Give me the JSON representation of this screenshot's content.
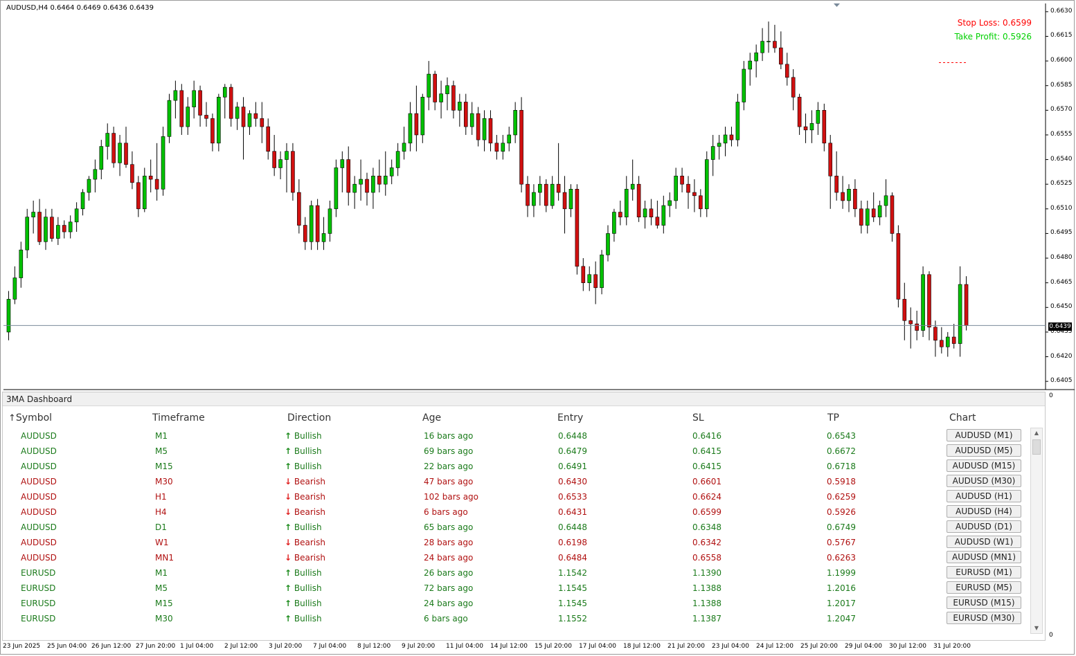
{
  "chart": {
    "symbol_header": "AUDUSD,H4  0.6464 0.6469 0.6436 0.6439",
    "stop_loss_label": "Stop Loss: 0.6599",
    "take_profit_label": "Take Profit: 0.5926",
    "current_price": "0.6439",
    "zero_label_top": "0",
    "zero_label_bottom": "0",
    "price_axis": [
      "0.6630",
      "0.6615",
      "0.6600",
      "0.6585",
      "0.6570",
      "0.6555",
      "0.6540",
      "0.6525",
      "0.6510",
      "0.6495",
      "0.6480",
      "0.6465",
      "0.6450",
      "0.6435",
      "0.6420",
      "0.6405"
    ],
    "time_axis": [
      "23 Jun 2025",
      "25 Jun 04:00",
      "26 Jun 12:00",
      "27 Jun 20:00",
      "1 Jul 04:00",
      "2 Jul 12:00",
      "3 Jul 20:00",
      "7 Jul 04:00",
      "8 Jul 12:00",
      "9 Jul 20:00",
      "11 Jul 04:00",
      "14 Jul 12:00",
      "15 Jul 20:00",
      "17 Jul 04:00",
      "18 Jul 12:00",
      "21 Jul 20:00",
      "23 Jul 04:00",
      "24 Jul 12:00",
      "25 Jul 20:00",
      "29 Jul 04:00",
      "30 Jul 12:00",
      "31 Jul 20:00"
    ],
    "colors": {
      "bull": "#00c000",
      "bear": "#d01010",
      "wick": "#000000"
    }
  },
  "chart_data": {
    "type": "candlestick",
    "title": "AUDUSD,H4",
    "ylim": [
      0.64,
      0.6635
    ],
    "ohlc": [
      [
        0.6435,
        0.646,
        0.643,
        0.6455
      ],
      [
        0.6455,
        0.6475,
        0.6452,
        0.6468
      ],
      [
        0.6468,
        0.649,
        0.6462,
        0.6485
      ],
      [
        0.6485,
        0.651,
        0.648,
        0.6505
      ],
      [
        0.6505,
        0.6515,
        0.6495,
        0.6508
      ],
      [
        0.6508,
        0.6516,
        0.6488,
        0.649
      ],
      [
        0.649,
        0.651,
        0.6485,
        0.6505
      ],
      [
        0.6505,
        0.651,
        0.649,
        0.6492
      ],
      [
        0.6492,
        0.6505,
        0.6488,
        0.65
      ],
      [
        0.65,
        0.6503,
        0.6492,
        0.6496
      ],
      [
        0.6496,
        0.6506,
        0.6492,
        0.6502
      ],
      [
        0.6502,
        0.6514,
        0.6496,
        0.651
      ],
      [
        0.651,
        0.6522,
        0.6506,
        0.652
      ],
      [
        0.652,
        0.653,
        0.6515,
        0.6528
      ],
      [
        0.6528,
        0.654,
        0.652,
        0.6534
      ],
      [
        0.6534,
        0.6552,
        0.6528,
        0.6548
      ],
      [
        0.6548,
        0.6562,
        0.654,
        0.6556
      ],
      [
        0.6556,
        0.656,
        0.6535,
        0.6538
      ],
      [
        0.6538,
        0.6555,
        0.653,
        0.655
      ],
      [
        0.655,
        0.656,
        0.6535,
        0.6537
      ],
      [
        0.6537,
        0.6545,
        0.6522,
        0.6526
      ],
      [
        0.6526,
        0.653,
        0.6505,
        0.651
      ],
      [
        0.651,
        0.6535,
        0.6508,
        0.653
      ],
      [
        0.653,
        0.654,
        0.652,
        0.6528
      ],
      [
        0.6528,
        0.655,
        0.6515,
        0.6522
      ],
      [
        0.6522,
        0.656,
        0.6518,
        0.6554
      ],
      [
        0.6554,
        0.658,
        0.655,
        0.6576
      ],
      [
        0.6576,
        0.6588,
        0.6565,
        0.6582
      ],
      [
        0.6582,
        0.6586,
        0.6555,
        0.656
      ],
      [
        0.656,
        0.6578,
        0.6555,
        0.6572
      ],
      [
        0.6572,
        0.6588,
        0.6565,
        0.6582
      ],
      [
        0.6582,
        0.6585,
        0.656,
        0.6567
      ],
      [
        0.6567,
        0.6575,
        0.656,
        0.6565
      ],
      [
        0.6565,
        0.6568,
        0.6545,
        0.655
      ],
      [
        0.655,
        0.658,
        0.6545,
        0.6578
      ],
      [
        0.6578,
        0.6586,
        0.6565,
        0.6584
      ],
      [
        0.6584,
        0.6586,
        0.656,
        0.6565
      ],
      [
        0.6565,
        0.6575,
        0.6558,
        0.6572
      ],
      [
        0.6572,
        0.6578,
        0.654,
        0.656
      ],
      [
        0.656,
        0.657,
        0.6555,
        0.6568
      ],
      [
        0.6568,
        0.6575,
        0.656,
        0.6565
      ],
      [
        0.6565,
        0.6575,
        0.655,
        0.656
      ],
      [
        0.656,
        0.6565,
        0.654,
        0.6545
      ],
      [
        0.6545,
        0.6555,
        0.653,
        0.6535
      ],
      [
        0.6535,
        0.6545,
        0.6528,
        0.654
      ],
      [
        0.654,
        0.655,
        0.652,
        0.6545
      ],
      [
        0.6545,
        0.655,
        0.6515,
        0.652
      ],
      [
        0.652,
        0.6528,
        0.6495,
        0.65
      ],
      [
        0.65,
        0.6505,
        0.6485,
        0.649
      ],
      [
        0.649,
        0.6515,
        0.6485,
        0.6512
      ],
      [
        0.6512,
        0.6516,
        0.6485,
        0.649
      ],
      [
        0.649,
        0.6505,
        0.6485,
        0.6495
      ],
      [
        0.6495,
        0.6515,
        0.649,
        0.651
      ],
      [
        0.651,
        0.654,
        0.6505,
        0.6535
      ],
      [
        0.6535,
        0.6545,
        0.652,
        0.654
      ],
      [
        0.654,
        0.6548,
        0.6512,
        0.652
      ],
      [
        0.652,
        0.653,
        0.651,
        0.6525
      ],
      [
        0.6525,
        0.654,
        0.6515,
        0.6528
      ],
      [
        0.6528,
        0.6532,
        0.6512,
        0.652
      ],
      [
        0.652,
        0.6535,
        0.651,
        0.653
      ],
      [
        0.653,
        0.654,
        0.652,
        0.6525
      ],
      [
        0.6525,
        0.6545,
        0.6518,
        0.653
      ],
      [
        0.653,
        0.654,
        0.6525,
        0.6535
      ],
      [
        0.6535,
        0.655,
        0.653,
        0.6545
      ],
      [
        0.6545,
        0.656,
        0.654,
        0.655
      ],
      [
        0.655,
        0.6575,
        0.6545,
        0.6568
      ],
      [
        0.6568,
        0.6585,
        0.6545,
        0.6555
      ],
      [
        0.6555,
        0.658,
        0.655,
        0.6578
      ],
      [
        0.6578,
        0.66,
        0.657,
        0.6592
      ],
      [
        0.6592,
        0.6594,
        0.657,
        0.6575
      ],
      [
        0.6575,
        0.6588,
        0.6565,
        0.658
      ],
      [
        0.658,
        0.659,
        0.657,
        0.6585
      ],
      [
        0.6585,
        0.6588,
        0.6565,
        0.657
      ],
      [
        0.657,
        0.658,
        0.656,
        0.6575
      ],
      [
        0.6575,
        0.658,
        0.6555,
        0.656
      ],
      [
        0.656,
        0.6575,
        0.6555,
        0.6568
      ],
      [
        0.6568,
        0.6572,
        0.6548,
        0.6552
      ],
      [
        0.6552,
        0.657,
        0.6545,
        0.6565
      ],
      [
        0.6565,
        0.657,
        0.6545,
        0.655
      ],
      [
        0.655,
        0.6555,
        0.654,
        0.6545
      ],
      [
        0.6545,
        0.6555,
        0.654,
        0.655
      ],
      [
        0.655,
        0.656,
        0.6545,
        0.6555
      ],
      [
        0.6555,
        0.6575,
        0.655,
        0.657
      ],
      [
        0.657,
        0.6578,
        0.652,
        0.6525
      ],
      [
        0.6525,
        0.653,
        0.6505,
        0.6512
      ],
      [
        0.6512,
        0.6525,
        0.6505,
        0.652
      ],
      [
        0.652,
        0.653,
        0.6512,
        0.6525
      ],
      [
        0.6525,
        0.6528,
        0.6508,
        0.6512
      ],
      [
        0.6512,
        0.653,
        0.651,
        0.6525
      ],
      [
        0.6525,
        0.655,
        0.6515,
        0.652
      ],
      [
        0.652,
        0.653,
        0.6495,
        0.651
      ],
      [
        0.651,
        0.6525,
        0.6505,
        0.6522
      ],
      [
        0.6522,
        0.6525,
        0.647,
        0.6475
      ],
      [
        0.6475,
        0.648,
        0.646,
        0.6465
      ],
      [
        0.6465,
        0.6475,
        0.646,
        0.647
      ],
      [
        0.647,
        0.6478,
        0.6452,
        0.6462
      ],
      [
        0.6462,
        0.6485,
        0.6458,
        0.6482
      ],
      [
        0.6482,
        0.65,
        0.6478,
        0.6495
      ],
      [
        0.6495,
        0.651,
        0.649,
        0.6508
      ],
      [
        0.6508,
        0.6515,
        0.65,
        0.6505
      ],
      [
        0.6505,
        0.653,
        0.65,
        0.6522
      ],
      [
        0.6522,
        0.654,
        0.6515,
        0.6525
      ],
      [
        0.6525,
        0.653,
        0.6502,
        0.6505
      ],
      [
        0.6505,
        0.6515,
        0.6498,
        0.651
      ],
      [
        0.651,
        0.6516,
        0.65,
        0.6505
      ],
      [
        0.6505,
        0.6515,
        0.6498,
        0.65
      ],
      [
        0.65,
        0.6518,
        0.6495,
        0.6512
      ],
      [
        0.6512,
        0.652,
        0.6505,
        0.6515
      ],
      [
        0.6515,
        0.6535,
        0.651,
        0.653
      ],
      [
        0.653,
        0.6535,
        0.652,
        0.6525
      ],
      [
        0.6525,
        0.653,
        0.651,
        0.652
      ],
      [
        0.652,
        0.6528,
        0.6508,
        0.6518
      ],
      [
        0.6518,
        0.6522,
        0.6505,
        0.651
      ],
      [
        0.651,
        0.6545,
        0.6505,
        0.654
      ],
      [
        0.654,
        0.6555,
        0.653,
        0.6548
      ],
      [
        0.6548,
        0.6555,
        0.654,
        0.655
      ],
      [
        0.655,
        0.656,
        0.6542,
        0.6555
      ],
      [
        0.6555,
        0.656,
        0.6548,
        0.6552
      ],
      [
        0.6552,
        0.658,
        0.6548,
        0.6575
      ],
      [
        0.6575,
        0.66,
        0.657,
        0.6595
      ],
      [
        0.6595,
        0.6605,
        0.6585,
        0.66
      ],
      [
        0.66,
        0.661,
        0.659,
        0.6605
      ],
      [
        0.6605,
        0.662,
        0.66,
        0.6612
      ],
      [
        0.6612,
        0.6624,
        0.6605,
        0.6612
      ],
      [
        0.6612,
        0.6622,
        0.6605,
        0.6608
      ],
      [
        0.6608,
        0.6618,
        0.6595,
        0.6598
      ],
      [
        0.6598,
        0.6605,
        0.6585,
        0.659
      ],
      [
        0.659,
        0.6595,
        0.657,
        0.6578
      ],
      [
        0.6578,
        0.658,
        0.6555,
        0.656
      ],
      [
        0.656,
        0.6568,
        0.655,
        0.6558
      ],
      [
        0.6558,
        0.657,
        0.655,
        0.6562
      ],
      [
        0.6562,
        0.6575,
        0.6555,
        0.657
      ],
      [
        0.657,
        0.6574,
        0.6545,
        0.655
      ],
      [
        0.655,
        0.6555,
        0.651,
        0.653
      ],
      [
        0.653,
        0.6545,
        0.6515,
        0.652
      ],
      [
        0.652,
        0.653,
        0.651,
        0.6515
      ],
      [
        0.6515,
        0.6525,
        0.6508,
        0.6522
      ],
      [
        0.6522,
        0.6528,
        0.6505,
        0.651
      ],
      [
        0.651,
        0.6515,
        0.6495,
        0.65
      ],
      [
        0.65,
        0.6515,
        0.6495,
        0.651
      ],
      [
        0.651,
        0.652,
        0.6502,
        0.6505
      ],
      [
        0.6505,
        0.6515,
        0.65,
        0.6512
      ],
      [
        0.6512,
        0.6528,
        0.6505,
        0.6518
      ],
      [
        0.6518,
        0.652,
        0.649,
        0.6495
      ],
      [
        0.6495,
        0.65,
        0.645,
        0.6455
      ],
      [
        0.6455,
        0.6465,
        0.643,
        0.6442
      ],
      [
        0.6442,
        0.645,
        0.6425,
        0.644
      ],
      [
        0.644,
        0.6448,
        0.643,
        0.6436
      ],
      [
        0.6436,
        0.6475,
        0.6432,
        0.647
      ],
      [
        0.647,
        0.6472,
        0.643,
        0.6438
      ],
      [
        0.6438,
        0.6442,
        0.642,
        0.643
      ],
      [
        0.643,
        0.6438,
        0.6422,
        0.6426
      ],
      [
        0.6426,
        0.6435,
        0.642,
        0.6432
      ],
      [
        0.6432,
        0.644,
        0.6425,
        0.6428
      ],
      [
        0.6428,
        0.6475,
        0.642,
        0.6464
      ],
      [
        0.6464,
        0.6469,
        0.6436,
        0.6439
      ]
    ],
    "lines": [
      {
        "name": "Stop Loss",
        "value": 0.6599
      },
      {
        "name": "Current price",
        "value": 0.6439
      }
    ]
  },
  "dashboard": {
    "title": "3MA Dashboard",
    "sort_arrow": "↑",
    "headers": {
      "symbol": "Symbol",
      "timeframe": "Timeframe",
      "direction": "Direction",
      "age": "Age",
      "entry": "Entry",
      "sl": "SL",
      "tp": "TP",
      "chart": "Chart"
    },
    "rows": [
      {
        "symbol": "AUDUSD",
        "tf": "M1",
        "dir": "Bullish",
        "age": "16 bars ago",
        "entry": "0.6448",
        "sl": "0.6416",
        "tp": "0.6543",
        "btn": "AUDUSD (M1)"
      },
      {
        "symbol": "AUDUSD",
        "tf": "M5",
        "dir": "Bullish",
        "age": "69 bars ago",
        "entry": "0.6479",
        "sl": "0.6415",
        "tp": "0.6672",
        "btn": "AUDUSD (M5)"
      },
      {
        "symbol": "AUDUSD",
        "tf": "M15",
        "dir": "Bullish",
        "age": "22 bars ago",
        "entry": "0.6491",
        "sl": "0.6415",
        "tp": "0.6718",
        "btn": "AUDUSD (M15)"
      },
      {
        "symbol": "AUDUSD",
        "tf": "M30",
        "dir": "Bearish",
        "age": "47 bars ago",
        "entry": "0.6430",
        "sl": "0.6601",
        "tp": "0.5918",
        "btn": "AUDUSD (M30)"
      },
      {
        "symbol": "AUDUSD",
        "tf": "H1",
        "dir": "Bearish",
        "age": "102 bars ago",
        "entry": "0.6533",
        "sl": "0.6624",
        "tp": "0.6259",
        "btn": "AUDUSD (H1)"
      },
      {
        "symbol": "AUDUSD",
        "tf": "H4",
        "dir": "Bearish",
        "age": "6 bars ago",
        "entry": "0.6431",
        "sl": "0.6599",
        "tp": "0.5926",
        "btn": "AUDUSD (H4)"
      },
      {
        "symbol": "AUDUSD",
        "tf": "D1",
        "dir": "Bullish",
        "age": "65 bars ago",
        "entry": "0.6448",
        "sl": "0.6348",
        "tp": "0.6749",
        "btn": "AUDUSD (D1)"
      },
      {
        "symbol": "AUDUSD",
        "tf": "W1",
        "dir": "Bearish",
        "age": "28 bars ago",
        "entry": "0.6198",
        "sl": "0.6342",
        "tp": "0.5767",
        "btn": "AUDUSD (W1)"
      },
      {
        "symbol": "AUDUSD",
        "tf": "MN1",
        "dir": "Bearish",
        "age": "24 bars ago",
        "entry": "0.6484",
        "sl": "0.6558",
        "tp": "0.6263",
        "btn": "AUDUSD (MN1)"
      },
      {
        "symbol": "EURUSD",
        "tf": "M1",
        "dir": "Bullish",
        "age": "26 bars ago",
        "entry": "1.1542",
        "sl": "1.1390",
        "tp": "1.1999",
        "btn": "EURUSD (M1)"
      },
      {
        "symbol": "EURUSD",
        "tf": "M5",
        "dir": "Bullish",
        "age": "72 bars ago",
        "entry": "1.1545",
        "sl": "1.1388",
        "tp": "1.2016",
        "btn": "EURUSD (M5)"
      },
      {
        "symbol": "EURUSD",
        "tf": "M15",
        "dir": "Bullish",
        "age": "24 bars ago",
        "entry": "1.1545",
        "sl": "1.1388",
        "tp": "1.2017",
        "btn": "EURUSD (M15)"
      },
      {
        "symbol": "EURUSD",
        "tf": "M30",
        "dir": "Bullish",
        "age": "6 bars ago",
        "entry": "1.1552",
        "sl": "1.1387",
        "tp": "1.2047",
        "btn": "EURUSD (M30)"
      }
    ],
    "arrows": {
      "bull": "↑",
      "bear": "↓"
    },
    "scroll_icons": {
      "up": "scroll-up-icon",
      "down": "scroll-down-icon"
    },
    "scroll_up_glyph": "▲",
    "scroll_down_glyph": "▼"
  }
}
